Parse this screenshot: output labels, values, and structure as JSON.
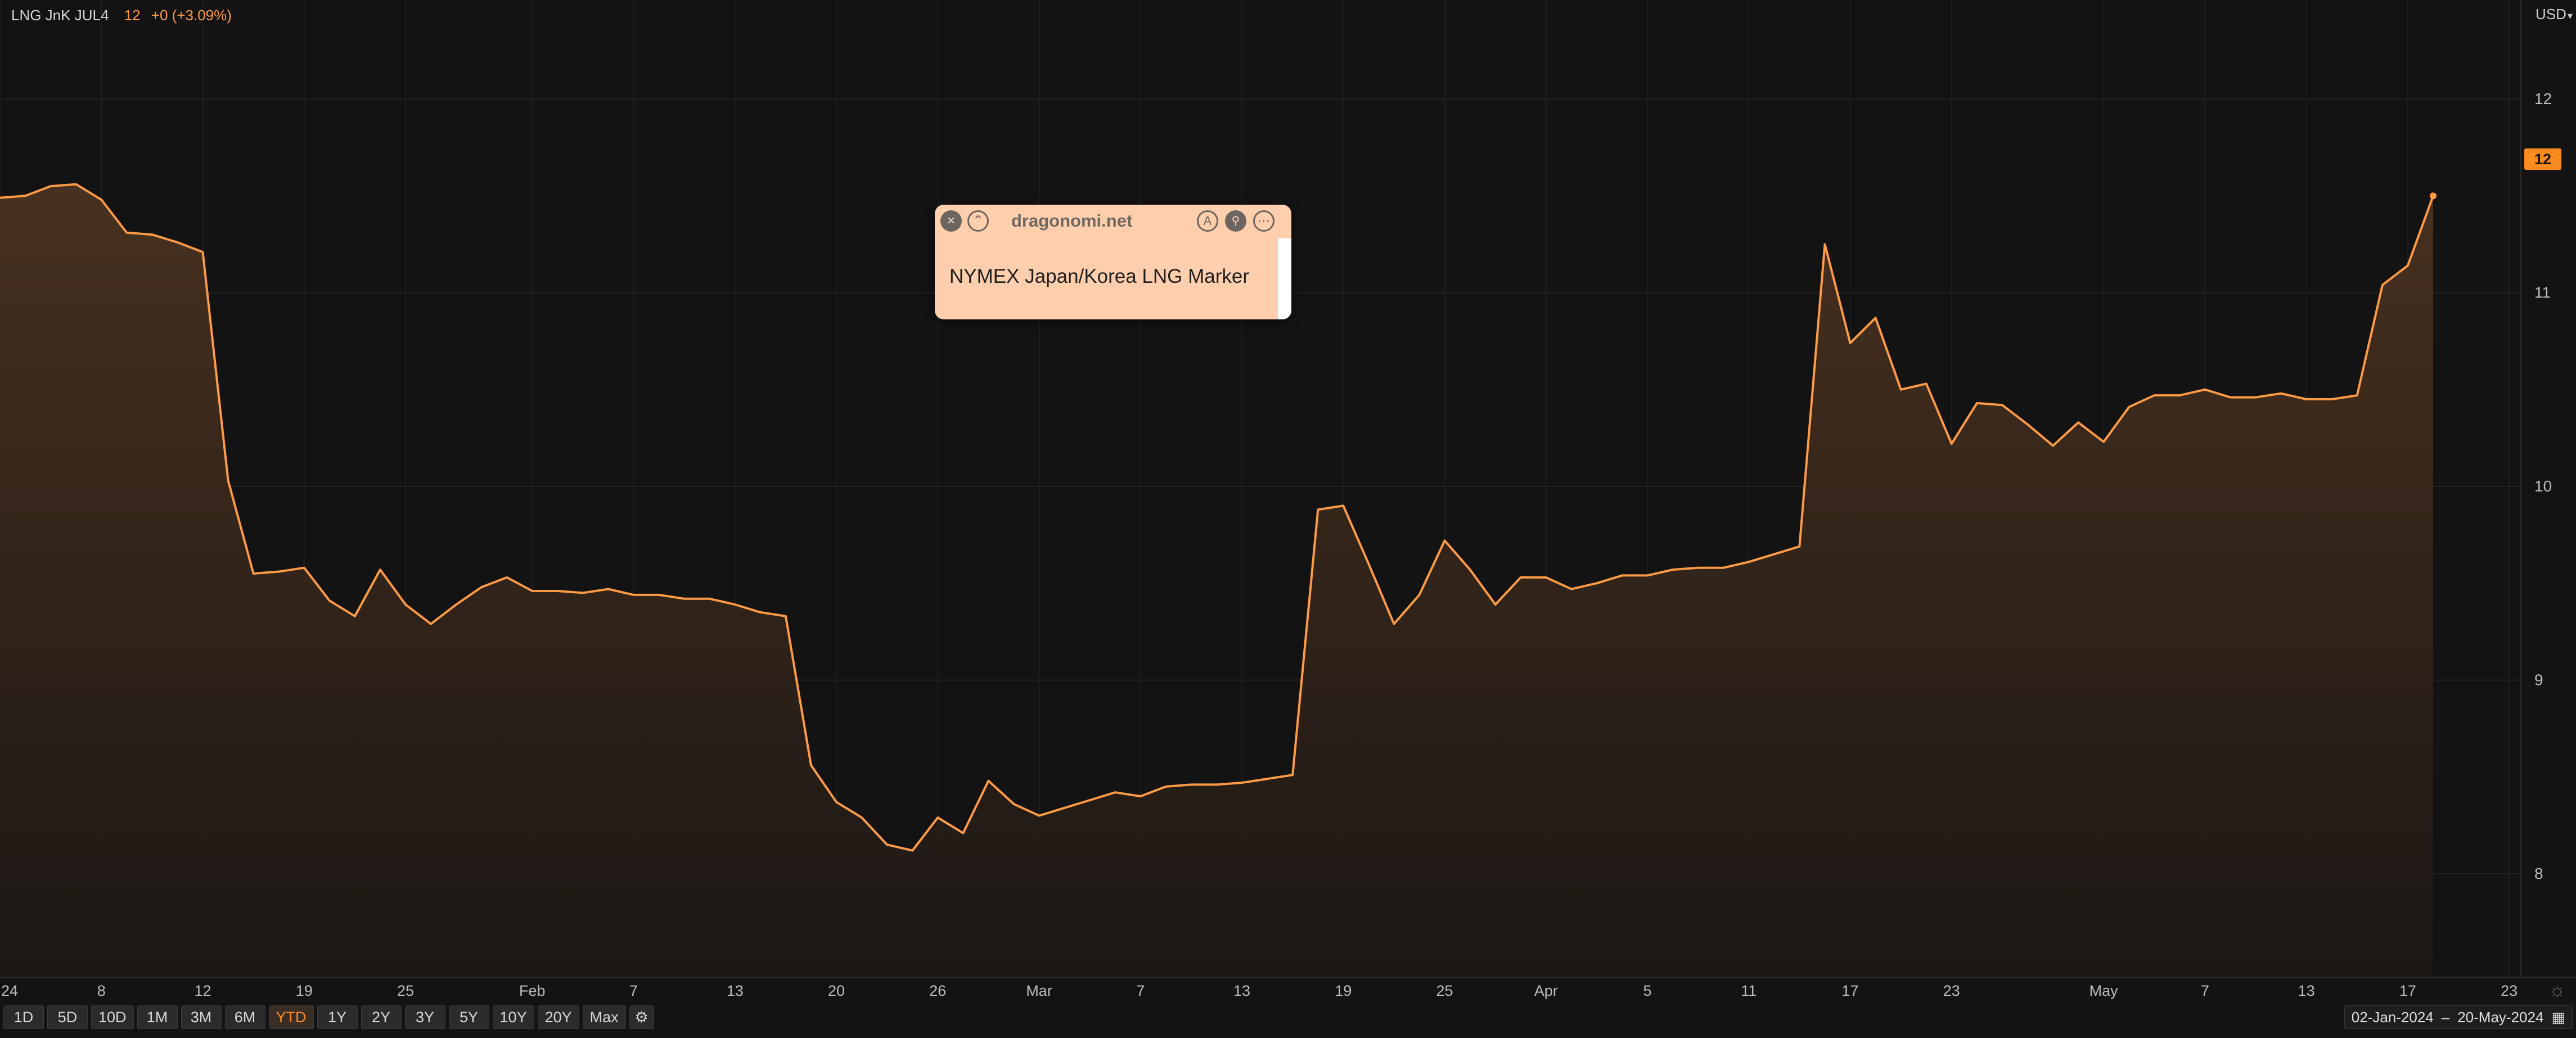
{
  "header": {
    "symbol": "LNG JnK JUL4",
    "last": "12",
    "change": "+0 (+3.09%)"
  },
  "currency": "USD",
  "last_price_badge": "12",
  "periods": [
    "1D",
    "5D",
    "10D",
    "1M",
    "3M",
    "6M",
    "YTD",
    "1Y",
    "2Y",
    "3Y",
    "5Y",
    "10Y",
    "20Y",
    "Max"
  ],
  "active_period": "YTD",
  "date_range": {
    "from": "02-Jan-2024",
    "sep": "–",
    "to": "20-May-2024"
  },
  "popup": {
    "site": "dragonomi.net",
    "text": "NYMEX Japan/Korea LNG Marker",
    "close_icon": "×",
    "up_icon": "⌃",
    "a_icon": "A",
    "pin_icon": "⚲",
    "more_icon": "⋯"
  },
  "icons": {
    "gear": "⚙",
    "calendar": "▦",
    "settings": "☼"
  },
  "colors": {
    "line": "#ff9a45",
    "accent": "#ff8a1f",
    "background": "#131314"
  },
  "chart_data": {
    "type": "area",
    "x_date_range": [
      "2024-01-02",
      "2024-05-20"
    ],
    "y_ticks": [
      "8",
      "9",
      "10",
      "11",
      "12"
    ],
    "ylim": [
      7.75,
      12.25
    ],
    "grid": true,
    "x_ticks": [
      {
        "label": "24",
        "idx": 0
      },
      {
        "label": "8",
        "idx": 4
      },
      {
        "label": "12",
        "idx": 8
      },
      {
        "label": "19",
        "idx": 12
      },
      {
        "label": "25",
        "idx": 16
      },
      {
        "label": "Feb",
        "idx": 21
      },
      {
        "label": "7",
        "idx": 25
      },
      {
        "label": "13",
        "idx": 29
      },
      {
        "label": "20",
        "idx": 33
      },
      {
        "label": "26",
        "idx": 37
      },
      {
        "label": "Mar",
        "idx": 41
      },
      {
        "label": "7",
        "idx": 45
      },
      {
        "label": "13",
        "idx": 49
      },
      {
        "label": "19",
        "idx": 53
      },
      {
        "label": "25",
        "idx": 57
      },
      {
        "label": "Apr",
        "idx": 61
      },
      {
        "label": "5",
        "idx": 65
      },
      {
        "label": "11",
        "idx": 69
      },
      {
        "label": "17",
        "idx": 73
      },
      {
        "label": "23",
        "idx": 77
      },
      {
        "label": "May",
        "idx": 83
      },
      {
        "label": "7",
        "idx": 87
      },
      {
        "label": "13",
        "idx": 91
      },
      {
        "label": "17",
        "idx": 95
      },
      {
        "label": "23",
        "idx": 99
      }
    ],
    "values": [
      11.49,
      11.5,
      11.55,
      11.56,
      11.48,
      11.31,
      11.3,
      11.26,
      11.21,
      10.03,
      9.55,
      9.56,
      9.58,
      9.41,
      9.33,
      9.57,
      9.39,
      9.29,
      9.39,
      9.48,
      9.53,
      9.46,
      9.46,
      9.45,
      9.47,
      9.44,
      9.44,
      9.42,
      9.42,
      9.39,
      9.35,
      9.33,
      8.56,
      8.37,
      8.29,
      8.15,
      8.12,
      8.29,
      8.21,
      8.48,
      8.36,
      8.3,
      8.34,
      8.38,
      8.42,
      8.4,
      8.45,
      8.46,
      8.46,
      8.47,
      8.49,
      8.51,
      9.88,
      9.9,
      9.6,
      9.29,
      9.44,
      9.72,
      9.57,
      9.39,
      9.53,
      9.53,
      9.47,
      9.5,
      9.54,
      9.54,
      9.57,
      9.58,
      9.58,
      9.61,
      9.65,
      9.69,
      11.25,
      10.74,
      10.87,
      10.5,
      10.53,
      10.22,
      10.43,
      10.42,
      10.32,
      10.21,
      10.33,
      10.23,
      10.41,
      10.47,
      10.47,
      10.5,
      10.46,
      10.46,
      10.48,
      10.45,
      10.45,
      10.47,
      11.04,
      11.14,
      11.5
    ]
  }
}
